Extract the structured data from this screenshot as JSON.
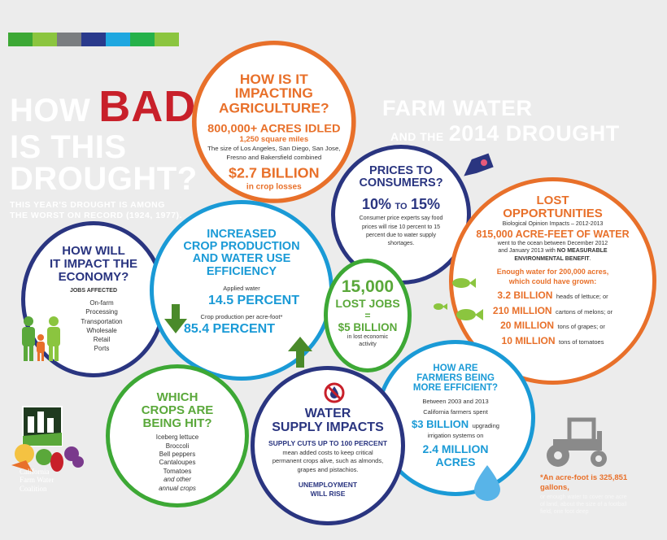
{
  "header": {
    "title_lines": [
      "HOW",
      "BAD",
      "IS THIS",
      "DROUGHT?"
    ],
    "subtitle": "THIS YEAR'S DROUGHT IS AMONG THE WORST ON RECORD (1924, 1977).",
    "right_title": "FARM WATER",
    "right_subtitle_small": "AND THE",
    "right_subtitle_big": "2014 DROUGHT"
  },
  "colors": {
    "bar": [
      "#3da835",
      "#8bc53f",
      "#7a7d80",
      "#2a3a8c",
      "#1fa7e0",
      "#25b14a",
      "#8bc53f"
    ],
    "orange": "#e8702a",
    "blue": "#1a9ad6",
    "navy": "#2a3580",
    "green": "#5aa83a"
  },
  "agriculture": {
    "title_lines": [
      "HOW IS IT",
      "IMPACTING",
      "AGRICULTURE?"
    ],
    "acres": "800,000+ ACRES IDLED",
    "sq_miles": "1,250 square miles",
    "desc_lines": [
      "The size of Los Angeles, San Diego, San Jose,",
      "Fresno and Bakersfield combined"
    ],
    "losses": "$2.7 BILLION",
    "losses_label": "in crop losses"
  },
  "prices": {
    "title_lines": [
      "PRICES TO",
      "CONSUMERS?"
    ],
    "range_a": "10%",
    "range_to": "TO",
    "range_b": "15%",
    "desc_lines": [
      "Consumer price experts say food",
      "prices will rise 10 percent to 15",
      "percent due to water supply",
      "shortages."
    ]
  },
  "lost": {
    "title_lines": [
      "LOST",
      "OPPORTUNITIES"
    ],
    "bio": "Biological Opinion Impacts – 2012-2013",
    "acre_feet": "815,000 ACRE-FEET OF WATER",
    "desc1": "went to the ocean between December 2012",
    "desc2_pre": "and January 2013 with",
    "desc2_bold": "NO MEASURABLE",
    "desc3_bold": "ENVIRONMENTAL BENEFIT",
    "desc3_post": ".",
    "enough_lines": [
      "Enough water for 200,000 acres,",
      "which could have grown:"
    ],
    "crops": [
      {
        "amount": "3.2 BILLION",
        "item": "heads of lettuce; or"
      },
      {
        "amount": "210 MILLION",
        "item": "cartons of melons; or"
      },
      {
        "amount": "20 MILLION",
        "item": "tons of grapes; or"
      },
      {
        "amount": "10 MILLION",
        "item": "tons of tomatoes"
      }
    ]
  },
  "economy": {
    "title_lines": [
      "HOW WILL",
      "IT IMPACT THE",
      "ECONOMY?"
    ],
    "jobs_label": "JOBS AFFECTED",
    "jobs": [
      "On-farm",
      "Processing",
      "Transportation",
      "Wholesale",
      "Retail",
      "Ports"
    ]
  },
  "efficiency": {
    "title_lines": [
      "INCREASED",
      "CROP PRODUCTION",
      "AND WATER USE",
      "EFFICIENCY"
    ],
    "applied_label": "Applied water",
    "applied_value": "14.5 PERCENT",
    "production_label": "Crop production per acre-foot*",
    "production_value": "85.4 PERCENT"
  },
  "jobs": {
    "count": "15,000",
    "label": "LOST JOBS",
    "eq": "=",
    "value": "$5 BILLION",
    "desc_lines": [
      "in lost economic",
      "activity"
    ]
  },
  "farmers": {
    "title_lines": [
      "HOW ARE",
      "FARMERS BEING",
      "MORE EFFICIENT?"
    ],
    "years": "Between 2003 and 2013",
    "spent": "California farmers spent",
    "amount": "$3 BILLION",
    "upgrading": "upgrading",
    "irrigation": "irrigation systems on",
    "acres_lines": [
      "2.4 MILLION",
      "ACRES"
    ]
  },
  "crops_hit": {
    "title_lines": [
      "WHICH",
      "CROPS ARE",
      "BEING HIT?"
    ],
    "items": [
      "Iceberg lettuce",
      "Broccoli",
      "Bell peppers",
      "Cantaloupes",
      "Tomatoes"
    ],
    "more_lines": [
      "and other",
      "annual crops"
    ]
  },
  "supply": {
    "title_lines": [
      "WATER",
      "SUPPLY IMPACTS"
    ],
    "cuts": "SUPPLY CUTS UP TO 100 PERCENT",
    "desc_lines": [
      "mean added costs to keep critical",
      "permanent crops alive, such as almonds,",
      "grapes and pistachios."
    ],
    "unemployment_lines": [
      "UNEMPLOYMENT",
      "WILL RISE"
    ]
  },
  "footnote": {
    "lines": [
      "*An acre-foot is 325,851",
      "gallons,"
    ],
    "faint_lines": [
      "or enough water to cover one acre",
      "of land, about the size of a football",
      "field, one foot deep"
    ]
  },
  "logo": {
    "lines": [
      "California",
      "Farm Water",
      "Coalition"
    ]
  }
}
